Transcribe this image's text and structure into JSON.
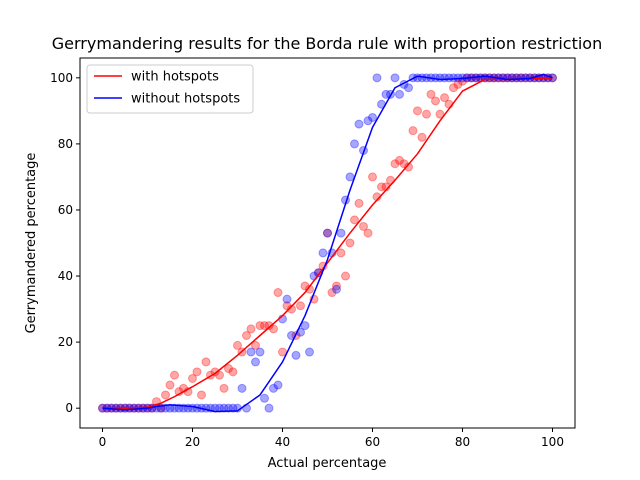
{
  "chart_data": {
    "type": "scatter",
    "title": "Gerrymandering results for the Borda rule with proportion restriction",
    "xlabel": "Actual percentage",
    "ylabel": "Gerrymandered percentage",
    "xlim": [
      -5,
      105
    ],
    "ylim": [
      -6,
      106
    ],
    "xticks": [
      0,
      20,
      40,
      60,
      80,
      100
    ],
    "yticks": [
      0,
      20,
      40,
      60,
      80,
      100
    ],
    "grid": false,
    "legend_position": "top-left",
    "series": [
      {
        "name": "with hotspots",
        "color": "#ff0000",
        "points": [
          [
            0,
            0
          ],
          [
            1,
            0
          ],
          [
            2,
            0
          ],
          [
            3,
            0
          ],
          [
            4,
            0
          ],
          [
            5,
            0
          ],
          [
            6,
            0
          ],
          [
            7,
            0
          ],
          [
            8,
            0
          ],
          [
            9,
            0
          ],
          [
            10,
            0
          ],
          [
            11,
            0
          ],
          [
            12,
            2
          ],
          [
            13,
            0
          ],
          [
            14,
            4
          ],
          [
            15,
            7
          ],
          [
            16,
            10
          ],
          [
            17,
            5
          ],
          [
            18,
            6
          ],
          [
            19,
            5
          ],
          [
            20,
            9
          ],
          [
            21,
            11
          ],
          [
            22,
            4
          ],
          [
            23,
            14
          ],
          [
            24,
            10
          ],
          [
            25,
            11
          ],
          [
            26,
            10
          ],
          [
            27,
            6
          ],
          [
            28,
            12
          ],
          [
            29,
            11
          ],
          [
            30,
            19
          ],
          [
            31,
            17
          ],
          [
            32,
            22
          ],
          [
            33,
            24
          ],
          [
            34,
            19
          ],
          [
            35,
            25
          ],
          [
            36,
            25
          ],
          [
            37,
            25
          ],
          [
            38,
            24
          ],
          [
            39,
            35
          ],
          [
            40,
            17
          ],
          [
            41,
            31
          ],
          [
            42,
            30
          ],
          [
            43,
            22
          ],
          [
            44,
            31
          ],
          [
            45,
            37
          ],
          [
            46,
            36
          ],
          [
            47,
            33
          ],
          [
            48,
            41
          ],
          [
            49,
            43
          ],
          [
            50,
            53
          ],
          [
            51,
            35
          ],
          [
            52,
            37
          ],
          [
            53,
            47
          ],
          [
            54,
            40
          ],
          [
            55,
            50
          ],
          [
            56,
            57
          ],
          [
            57,
            62
          ],
          [
            58,
            55
          ],
          [
            59,
            53
          ],
          [
            60,
            70
          ],
          [
            61,
            64
          ],
          [
            62,
            67
          ],
          [
            63,
            67
          ],
          [
            64,
            69
          ],
          [
            65,
            74
          ],
          [
            66,
            75
          ],
          [
            67,
            74
          ],
          [
            68,
            73
          ],
          [
            69,
            84
          ],
          [
            70,
            90
          ],
          [
            71,
            82
          ],
          [
            72,
            89
          ],
          [
            73,
            95
          ],
          [
            74,
            93
          ],
          [
            75,
            89
          ],
          [
            76,
            94
          ],
          [
            77,
            92
          ],
          [
            78,
            97
          ],
          [
            79,
            98
          ],
          [
            80,
            99
          ],
          [
            81,
            100
          ],
          [
            82,
            100
          ],
          [
            83,
            100
          ],
          [
            84,
            100
          ],
          [
            85,
            100
          ],
          [
            86,
            100
          ],
          [
            87,
            100
          ],
          [
            88,
            100
          ],
          [
            89,
            100
          ],
          [
            90,
            100
          ],
          [
            91,
            100
          ],
          [
            92,
            100
          ],
          [
            93,
            100
          ],
          [
            94,
            100
          ],
          [
            95,
            100
          ],
          [
            96,
            100
          ],
          [
            97,
            100
          ],
          [
            98,
            100
          ],
          [
            99,
            100
          ],
          [
            100,
            100
          ]
        ],
        "fit": [
          [
            0,
            0
          ],
          [
            5,
            0
          ],
          [
            10,
            0.3
          ],
          [
            13,
            1.5
          ],
          [
            16,
            3.5
          ],
          [
            20,
            6.5
          ],
          [
            25,
            10.5
          ],
          [
            30,
            16
          ],
          [
            35,
            22
          ],
          [
            40,
            28
          ],
          [
            45,
            35
          ],
          [
            50,
            44
          ],
          [
            55,
            53
          ],
          [
            60,
            61.5
          ],
          [
            65,
            69
          ],
          [
            70,
            77
          ],
          [
            75,
            87
          ],
          [
            80,
            96
          ],
          [
            85,
            99.5
          ],
          [
            90,
            99.5
          ],
          [
            95,
            99.8
          ],
          [
            100,
            100
          ]
        ]
      },
      {
        "name": "without hotspots",
        "color": "#0000ff",
        "points": [
          [
            0,
            0
          ],
          [
            1,
            0
          ],
          [
            2,
            0
          ],
          [
            3,
            0
          ],
          [
            4,
            0
          ],
          [
            5,
            0
          ],
          [
            6,
            0
          ],
          [
            7,
            0
          ],
          [
            8,
            0
          ],
          [
            9,
            0
          ],
          [
            10,
            0
          ],
          [
            11,
            0
          ],
          [
            12,
            0
          ],
          [
            13,
            0
          ],
          [
            14,
            0
          ],
          [
            15,
            0
          ],
          [
            16,
            0
          ],
          [
            17,
            0
          ],
          [
            18,
            0
          ],
          [
            19,
            0
          ],
          [
            20,
            0
          ],
          [
            21,
            0
          ],
          [
            22,
            0
          ],
          [
            23,
            0
          ],
          [
            24,
            0
          ],
          [
            25,
            0
          ],
          [
            26,
            0
          ],
          [
            27,
            0
          ],
          [
            28,
            0
          ],
          [
            29,
            0
          ],
          [
            30,
            0
          ],
          [
            31,
            6
          ],
          [
            32,
            0
          ],
          [
            33,
            17
          ],
          [
            34,
            14
          ],
          [
            35,
            17
          ],
          [
            36,
            3
          ],
          [
            37,
            0
          ],
          [
            38,
            6
          ],
          [
            39,
            7
          ],
          [
            40,
            27
          ],
          [
            41,
            33
          ],
          [
            42,
            22
          ],
          [
            43,
            16
          ],
          [
            44,
            23
          ],
          [
            45,
            25
          ],
          [
            46,
            17
          ],
          [
            47,
            40
          ],
          [
            48,
            41
          ],
          [
            49,
            47
          ],
          [
            50,
            53
          ],
          [
            51,
            47
          ],
          [
            52,
            36
          ],
          [
            53,
            53
          ],
          [
            54,
            63
          ],
          [
            55,
            70
          ],
          [
            56,
            80
          ],
          [
            57,
            86
          ],
          [
            58,
            78
          ],
          [
            59,
            87
          ],
          [
            60,
            88
          ],
          [
            61,
            100
          ],
          [
            62,
            92
          ],
          [
            63,
            95
          ],
          [
            64,
            95
          ],
          [
            65,
            100
          ],
          [
            66,
            95
          ],
          [
            67,
            98
          ],
          [
            68,
            97
          ],
          [
            69,
            100
          ],
          [
            70,
            100
          ],
          [
            71,
            100
          ],
          [
            72,
            100
          ],
          [
            73,
            100
          ],
          [
            74,
            100
          ],
          [
            75,
            100
          ],
          [
            76,
            100
          ],
          [
            77,
            100
          ],
          [
            78,
            100
          ],
          [
            79,
            100
          ],
          [
            80,
            100
          ],
          [
            81,
            100
          ],
          [
            82,
            100
          ],
          [
            83,
            100
          ],
          [
            84,
            100
          ],
          [
            85,
            100
          ],
          [
            86,
            100
          ],
          [
            87,
            100
          ],
          [
            88,
            100
          ],
          [
            89,
            100
          ],
          [
            90,
            100
          ],
          [
            91,
            100
          ],
          [
            92,
            100
          ],
          [
            93,
            100
          ],
          [
            94,
            100
          ],
          [
            95,
            100
          ],
          [
            96,
            100
          ],
          [
            97,
            100
          ],
          [
            98,
            100
          ],
          [
            99,
            100
          ],
          [
            100,
            100
          ]
        ],
        "fit": [
          [
            0,
            0
          ],
          [
            5,
            -0.5
          ],
          [
            10,
            0
          ],
          [
            12,
            0.5
          ],
          [
            15,
            1
          ],
          [
            20,
            0.5
          ],
          [
            25,
            -1
          ],
          [
            30,
            -0.8
          ],
          [
            35,
            4
          ],
          [
            40,
            14
          ],
          [
            45,
            28
          ],
          [
            50,
            45
          ],
          [
            55,
            66
          ],
          [
            60,
            85
          ],
          [
            65,
            97
          ],
          [
            70,
            100.5
          ],
          [
            75,
            99.5
          ],
          [
            80,
            99.8
          ],
          [
            85,
            100.5
          ],
          [
            90,
            99.5
          ],
          [
            95,
            99.8
          ],
          [
            98,
            101
          ],
          [
            100,
            100
          ]
        ]
      }
    ]
  }
}
